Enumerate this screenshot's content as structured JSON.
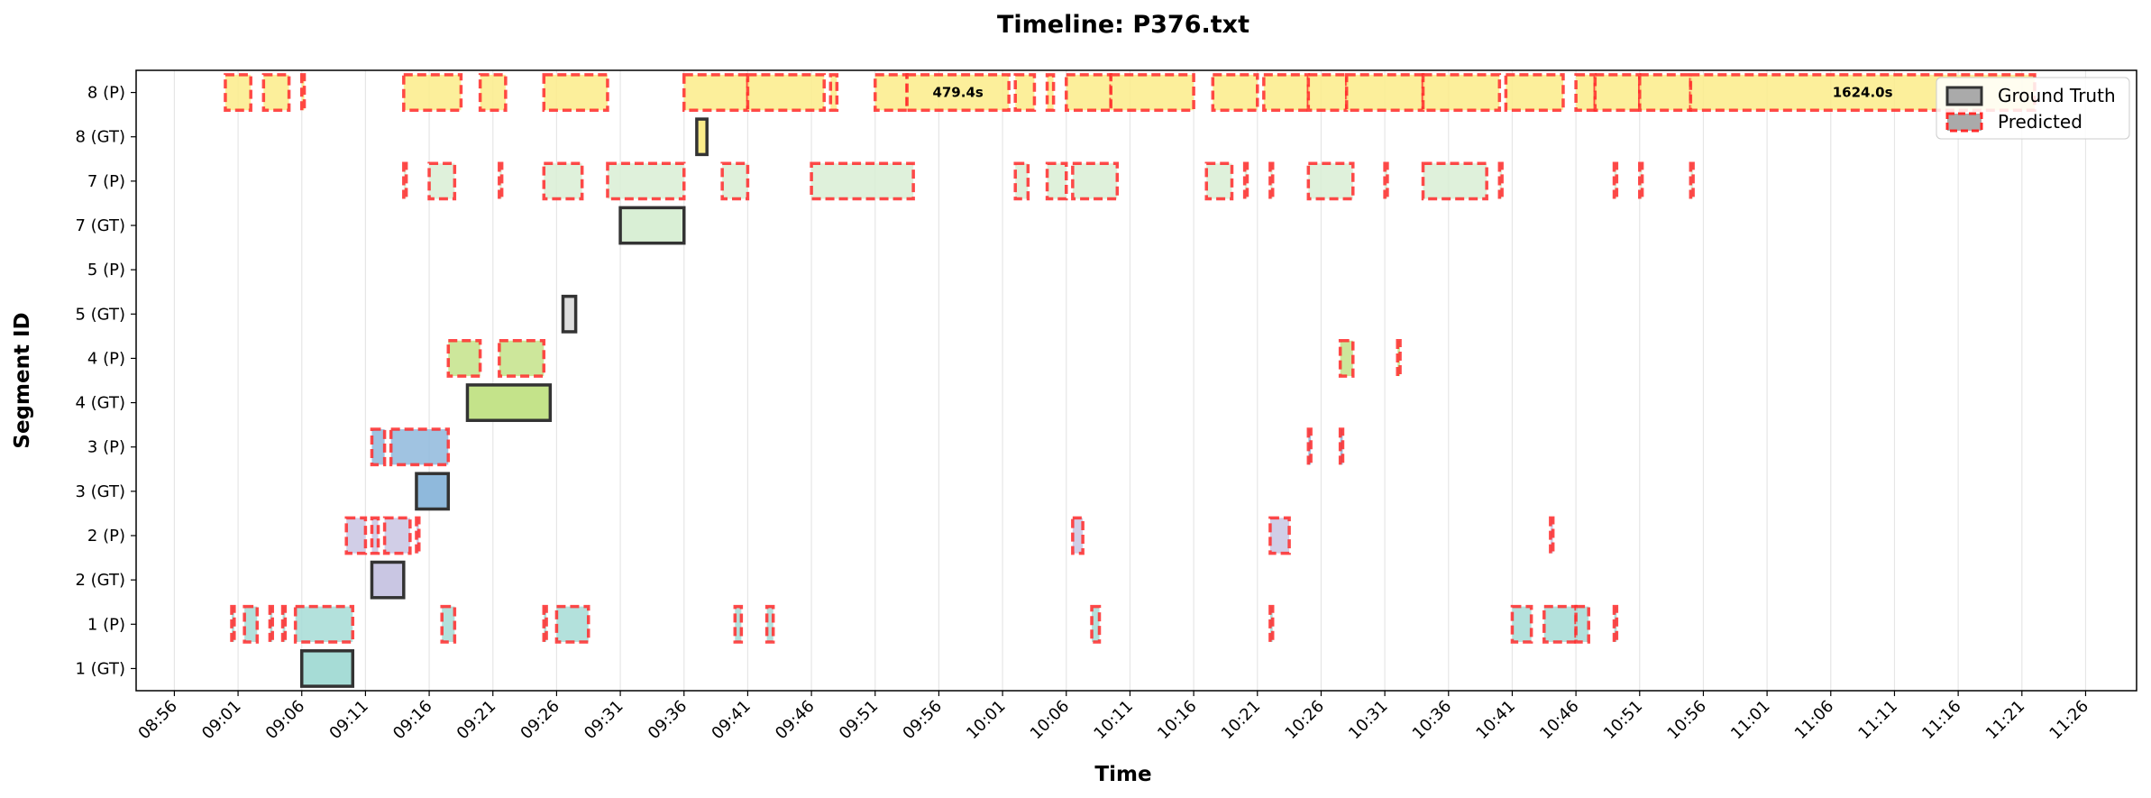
{
  "chart_data": {
    "type": "timeline",
    "title": "Timeline: P376.txt",
    "xlabel": "Time",
    "ylabel": "Segment ID",
    "x_range": [
      "08:53",
      "11:30"
    ],
    "x_ticks": [
      "08:56",
      "09:01",
      "09:06",
      "09:11",
      "09:16",
      "09:21",
      "09:26",
      "09:31",
      "09:36",
      "09:41",
      "09:46",
      "09:51",
      "09:56",
      "10:01",
      "10:06",
      "10:11",
      "10:16",
      "10:21",
      "10:26",
      "10:31",
      "10:36",
      "10:41",
      "10:46",
      "10:51",
      "10:56",
      "11:01",
      "11:06",
      "11:11",
      "11:16",
      "11:21",
      "11:26"
    ],
    "rows": [
      "1 (GT)",
      "1 (P)",
      "2 (GT)",
      "2 (P)",
      "3 (GT)",
      "3 (P)",
      "4 (GT)",
      "4 (P)",
      "5 (GT)",
      "5 (P)",
      "7 (GT)",
      "7 (P)",
      "8 (GT)",
      "8 (P)"
    ],
    "grid": "vertical",
    "legend_position": "top-right",
    "legend": [
      {
        "label": "Ground Truth",
        "style": "solid"
      },
      {
        "label": "Predicted",
        "style": "dashed"
      }
    ],
    "colors": {
      "1": "#a6dcd6",
      "2": "#c9c6e3",
      "3": "#8fb9dc",
      "4": "#c4e38a",
      "5": "#dddddd",
      "7": "#d9efd5",
      "8": "#fbec8a",
      "gt_edge": "#333333",
      "pred_edge": "#ff2a2a",
      "grid": "#e6e6e6"
    },
    "ground_truth": [
      {
        "row": "1 (GT)",
        "seg": "1",
        "start": "09:06",
        "end": "09:10"
      },
      {
        "row": "2 (GT)",
        "seg": "2",
        "start": "09:11.5",
        "end": "09:14"
      },
      {
        "row": "3 (GT)",
        "seg": "3",
        "start": "09:15",
        "end": "09:17.5"
      },
      {
        "row": "4 (GT)",
        "seg": "4",
        "start": "09:19",
        "end": "09:25.5"
      },
      {
        "row": "5 (GT)",
        "seg": "5",
        "start": "09:26.5",
        "end": "09:27.5"
      },
      {
        "row": "7 (GT)",
        "seg": "7",
        "start": "09:31",
        "end": "09:36"
      },
      {
        "row": "8 (GT)",
        "seg": "8",
        "start": "09:37",
        "end": "09:37.8"
      }
    ],
    "predicted": [
      {
        "row": "1 (P)",
        "seg": "1",
        "start": "09:00.5",
        "end": "09:00.7"
      },
      {
        "row": "1 (P)",
        "seg": "1",
        "start": "09:01.5",
        "end": "09:02.5"
      },
      {
        "row": "1 (P)",
        "seg": "1",
        "start": "09:03.5",
        "end": "09:03.7"
      },
      {
        "row": "1 (P)",
        "seg": "1",
        "start": "09:04.5",
        "end": "09:04.7"
      },
      {
        "row": "1 (P)",
        "seg": "1",
        "start": "09:05.5",
        "end": "09:10"
      },
      {
        "row": "1 (P)",
        "seg": "1",
        "start": "09:17",
        "end": "09:18"
      },
      {
        "row": "1 (P)",
        "seg": "1",
        "start": "09:25",
        "end": "09:25.2"
      },
      {
        "row": "1 (P)",
        "seg": "1",
        "start": "09:26",
        "end": "09:28.5"
      },
      {
        "row": "1 (P)",
        "seg": "1",
        "start": "09:40",
        "end": "09:40.5"
      },
      {
        "row": "1 (P)",
        "seg": "1",
        "start": "09:42.5",
        "end": "09:43"
      },
      {
        "row": "1 (P)",
        "seg": "1",
        "start": "10:08",
        "end": "10:08.6"
      },
      {
        "row": "1 (P)",
        "seg": "1",
        "start": "10:22",
        "end": "10:22.2"
      },
      {
        "row": "1 (P)",
        "seg": "1",
        "start": "10:41",
        "end": "10:42.5"
      },
      {
        "row": "1 (P)",
        "seg": "1",
        "start": "10:43.5",
        "end": "10:46"
      },
      {
        "row": "1 (P)",
        "seg": "1",
        "start": "10:46",
        "end": "10:47"
      },
      {
        "row": "1 (P)",
        "seg": "1",
        "start": "10:49",
        "end": "10:49.2"
      },
      {
        "row": "2 (P)",
        "seg": "2",
        "start": "09:09.5",
        "end": "09:11"
      },
      {
        "row": "2 (P)",
        "seg": "2",
        "start": "09:11.5",
        "end": "09:12"
      },
      {
        "row": "2 (P)",
        "seg": "2",
        "start": "09:12.5",
        "end": "09:14.5"
      },
      {
        "row": "2 (P)",
        "seg": "2",
        "start": "09:15",
        "end": "09:15.2"
      },
      {
        "row": "2 (P)",
        "seg": "2",
        "start": "10:06.5",
        "end": "10:07.3"
      },
      {
        "row": "2 (P)",
        "seg": "2",
        "start": "10:22",
        "end": "10:23.5"
      },
      {
        "row": "2 (P)",
        "seg": "2",
        "start": "10:44",
        "end": "10:44.2"
      },
      {
        "row": "3 (P)",
        "seg": "3",
        "start": "09:11.5",
        "end": "09:12.5"
      },
      {
        "row": "3 (P)",
        "seg": "3",
        "start": "09:13",
        "end": "09:17.5"
      },
      {
        "row": "3 (P)",
        "seg": "3",
        "start": "10:25",
        "end": "10:25.2"
      },
      {
        "row": "3 (P)",
        "seg": "3",
        "start": "10:27.5",
        "end": "10:27.7"
      },
      {
        "row": "4 (P)",
        "seg": "4",
        "start": "09:17.5",
        "end": "09:20"
      },
      {
        "row": "4 (P)",
        "seg": "4",
        "start": "09:21.5",
        "end": "09:25"
      },
      {
        "row": "4 (P)",
        "seg": "4",
        "start": "10:27.5",
        "end": "10:28.5"
      },
      {
        "row": "4 (P)",
        "seg": "4",
        "start": "10:32",
        "end": "10:32.2"
      },
      {
        "row": "7 (P)",
        "seg": "7",
        "start": "09:14",
        "end": "09:14.2"
      },
      {
        "row": "7 (P)",
        "seg": "7",
        "start": "09:16",
        "end": "09:18"
      },
      {
        "row": "7 (P)",
        "seg": "7",
        "start": "09:21.5",
        "end": "09:21.7"
      },
      {
        "row": "7 (P)",
        "seg": "7",
        "start": "09:25",
        "end": "09:28"
      },
      {
        "row": "7 (P)",
        "seg": "7",
        "start": "09:30",
        "end": "09:36"
      },
      {
        "row": "7 (P)",
        "seg": "7",
        "start": "09:39",
        "end": "09:41"
      },
      {
        "row": "7 (P)",
        "seg": "7",
        "start": "09:46",
        "end": "09:54"
      },
      {
        "row": "7 (P)",
        "seg": "7",
        "start": "10:02",
        "end": "10:03"
      },
      {
        "row": "7 (P)",
        "seg": "7",
        "start": "10:04.5",
        "end": "10:06"
      },
      {
        "row": "7 (P)",
        "seg": "7",
        "start": "10:06.5",
        "end": "10:10"
      },
      {
        "row": "7 (P)",
        "seg": "7",
        "start": "10:17",
        "end": "10:19"
      },
      {
        "row": "7 (P)",
        "seg": "7",
        "start": "10:20",
        "end": "10:20.2"
      },
      {
        "row": "7 (P)",
        "seg": "7",
        "start": "10:22",
        "end": "10:22.2"
      },
      {
        "row": "7 (P)",
        "seg": "7",
        "start": "10:25",
        "end": "10:28.5"
      },
      {
        "row": "7 (P)",
        "seg": "7",
        "start": "10:31",
        "end": "10:31.2"
      },
      {
        "row": "7 (P)",
        "seg": "7",
        "start": "10:34",
        "end": "10:39"
      },
      {
        "row": "7 (P)",
        "seg": "7",
        "start": "10:40",
        "end": "10:40.2"
      },
      {
        "row": "7 (P)",
        "seg": "7",
        "start": "10:49",
        "end": "10:49.2"
      },
      {
        "row": "7 (P)",
        "seg": "7",
        "start": "10:51",
        "end": "10:51.2"
      },
      {
        "row": "7 (P)",
        "seg": "7",
        "start": "10:55",
        "end": "10:55.2"
      },
      {
        "row": "8 (P)",
        "seg": "8",
        "start": "09:00",
        "end": "09:02"
      },
      {
        "row": "8 (P)",
        "seg": "8",
        "start": "09:03",
        "end": "09:05"
      },
      {
        "row": "8 (P)",
        "seg": "8",
        "start": "09:06",
        "end": "09:06.2"
      },
      {
        "row": "8 (P)",
        "seg": "8",
        "start": "09:14",
        "end": "09:18.5"
      },
      {
        "row": "8 (P)",
        "seg": "8",
        "start": "09:20",
        "end": "09:22"
      },
      {
        "row": "8 (P)",
        "seg": "8",
        "start": "09:25",
        "end": "09:30"
      },
      {
        "row": "8 (P)",
        "seg": "8",
        "start": "09:36",
        "end": "09:41"
      },
      {
        "row": "8 (P)",
        "seg": "8",
        "start": "09:41",
        "end": "09:47"
      },
      {
        "row": "8 (P)",
        "seg": "8",
        "start": "09:47.5",
        "end": "09:48"
      },
      {
        "row": "8 (P)",
        "seg": "8",
        "start": "09:51",
        "end": "09:53.5"
      },
      {
        "row": "8 (P)",
        "seg": "8",
        "start": "09:53.5",
        "end": "10:01.5",
        "label": "479.4s"
      },
      {
        "row": "8 (P)",
        "seg": "8",
        "start": "10:02",
        "end": "10:03.5"
      },
      {
        "row": "8 (P)",
        "seg": "8",
        "start": "10:04.5",
        "end": "10:05"
      },
      {
        "row": "8 (P)",
        "seg": "8",
        "start": "10:06",
        "end": "10:09.5"
      },
      {
        "row": "8 (P)",
        "seg": "8",
        "start": "10:09.5",
        "end": "10:16"
      },
      {
        "row": "8 (P)",
        "seg": "8",
        "start": "10:17.5",
        "end": "10:21"
      },
      {
        "row": "8 (P)",
        "seg": "8",
        "start": "10:21.5",
        "end": "10:25"
      },
      {
        "row": "8 (P)",
        "seg": "8",
        "start": "10:25",
        "end": "10:28"
      },
      {
        "row": "8 (P)",
        "seg": "8",
        "start": "10:28",
        "end": "10:34"
      },
      {
        "row": "8 (P)",
        "seg": "8",
        "start": "10:34",
        "end": "10:40"
      },
      {
        "row": "8 (P)",
        "seg": "8",
        "start": "10:40.5",
        "end": "10:45"
      },
      {
        "row": "8 (P)",
        "seg": "8",
        "start": "10:46",
        "end": "10:47.5"
      },
      {
        "row": "8 (P)",
        "seg": "8",
        "start": "10:47.5",
        "end": "10:51"
      },
      {
        "row": "8 (P)",
        "seg": "8",
        "start": "10:51",
        "end": "10:55"
      },
      {
        "row": "8 (P)",
        "seg": "8",
        "start": "10:55",
        "end": "11:22",
        "label": "1624.0s"
      }
    ]
  }
}
